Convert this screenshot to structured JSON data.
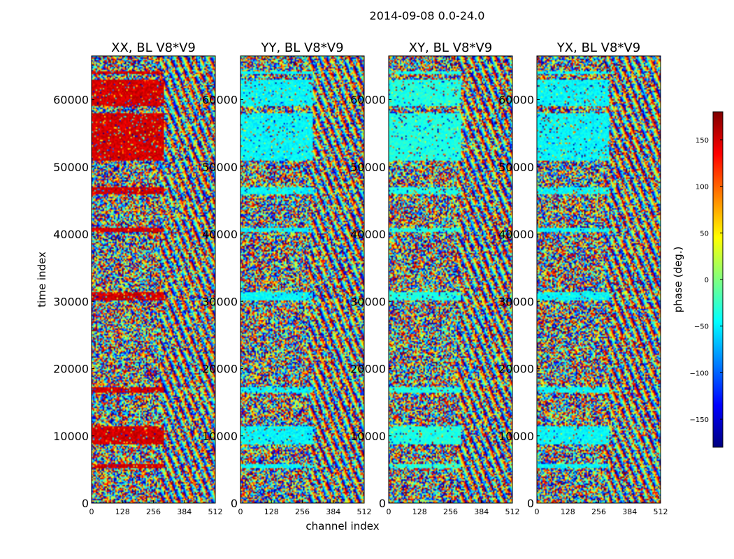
{
  "figure": {
    "suptitle": "2014-09-08 0.0-24.0",
    "xlabel": "channel index",
    "ylabel": "time index"
  },
  "colorbar": {
    "label": "phase (deg.)",
    "ticks": [
      150,
      100,
      50,
      0,
      -50,
      -100,
      -150
    ],
    "tick_labels": [
      "150",
      "100",
      "50",
      "0",
      "−50",
      "−100",
      "−150"
    ],
    "range": [
      -180,
      180
    ],
    "colormap": "jet",
    "colors": [
      "#00007f",
      "#0000ff",
      "#007fff",
      "#00ffff",
      "#7fff7f",
      "#ffff00",
      "#ff7f00",
      "#ff0000",
      "#7f0000"
    ]
  },
  "chart_data": [
    {
      "type": "heatmap",
      "title": "XX, BL V8*V9",
      "x_range": [
        0,
        512
      ],
      "y_range": [
        0,
        66500
      ],
      "xticks": [
        "0",
        "128",
        "256",
        "384",
        "512"
      ],
      "yticks": [
        "0",
        "10000",
        "20000",
        "30000",
        "40000",
        "50000",
        "60000"
      ],
      "z_unit": "deg",
      "dominant_phase_band_deg": 150
    },
    {
      "type": "heatmap",
      "title": "YY, BL V8*V9",
      "x_range": [
        0,
        512
      ],
      "y_range": [
        0,
        66500
      ],
      "xticks": [
        "0",
        "128",
        "256",
        "384",
        "512"
      ],
      "yticks": [
        "0",
        "10000",
        "20000",
        "30000",
        "40000",
        "50000",
        "60000"
      ],
      "z_unit": "deg",
      "dominant_phase_band_deg": -45
    },
    {
      "type": "heatmap",
      "title": "XY, BL V8*V9",
      "x_range": [
        0,
        512
      ],
      "y_range": [
        0,
        66500
      ],
      "xticks": [
        "0",
        "128",
        "256",
        "384",
        "512"
      ],
      "yticks": [
        "0",
        "10000",
        "20000",
        "30000",
        "40000",
        "50000",
        "60000"
      ],
      "z_unit": "deg",
      "dominant_phase_band_deg": -35
    },
    {
      "type": "heatmap",
      "title": "YX, BL V8*V9",
      "x_range": [
        0,
        512
      ],
      "y_range": [
        0,
        66500
      ],
      "xticks": [
        "0",
        "128",
        "256",
        "384",
        "512"
      ],
      "yticks": [
        "0",
        "10000",
        "20000",
        "30000",
        "40000",
        "50000",
        "60000"
      ],
      "z_unit": "deg",
      "dominant_phase_band_deg": -45
    }
  ]
}
